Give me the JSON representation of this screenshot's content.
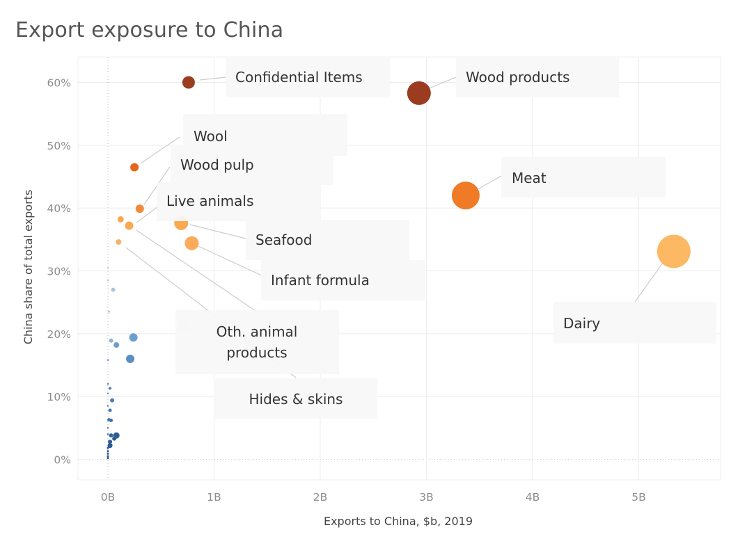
{
  "chart_data": {
    "type": "scatter",
    "title": "Export exposure to China",
    "xlabel": "Exports to China, $b, 2019",
    "ylabel": "China share of total exports",
    "xlim": [
      -0.3,
      5.75
    ],
    "ylim": [
      -3,
      64
    ],
    "x_ticks": [
      0,
      1,
      2,
      3,
      4,
      5
    ],
    "x_tick_labels": [
      "0B",
      "1B",
      "2B",
      "3B",
      "4B",
      "5B"
    ],
    "y_ticks": [
      0,
      10,
      20,
      30,
      40,
      50,
      60
    ],
    "y_tick_labels": [
      "0%",
      "10%",
      "20%",
      "30%",
      "40%",
      "50%",
      "60%"
    ],
    "grid": true,
    "legend": "none",
    "points": [
      {
        "x": 0.76,
        "y": 60.0,
        "size": 9,
        "color": "#9b3b1f"
      },
      {
        "x": 2.93,
        "y": 58.3,
        "size": 17,
        "color": "#9b3b1f"
      },
      {
        "x": 0.25,
        "y": 46.5,
        "size": 6,
        "color": "#e3661c"
      },
      {
        "x": 0.3,
        "y": 39.9,
        "size": 6,
        "color": "#f08a3c"
      },
      {
        "x": 3.37,
        "y": 42.0,
        "size": 20,
        "color": "#ef7b27"
      },
      {
        "x": 0.69,
        "y": 37.6,
        "size": 10,
        "color": "#fba853"
      },
      {
        "x": 0.12,
        "y": 38.2,
        "size": 4.5,
        "color": "#fba853"
      },
      {
        "x": 0.2,
        "y": 37.2,
        "size": 6,
        "color": "#fba853"
      },
      {
        "x": 0.79,
        "y": 34.4,
        "size": 10,
        "color": "#fbab5a"
      },
      {
        "x": 0.1,
        "y": 34.6,
        "size": 4,
        "color": "#fbb065"
      },
      {
        "x": 5.33,
        "y": 33.1,
        "size": 24,
        "color": "#fdb864"
      },
      {
        "x": 0.72,
        "y": 21.3,
        "size": 10,
        "color": "#e9eef3"
      },
      {
        "x": 0.05,
        "y": 27.0,
        "size": 3,
        "color": "#a8c6e0"
      },
      {
        "x": 0.24,
        "y": 19.4,
        "size": 6,
        "color": "#6c9fcf"
      },
      {
        "x": 0.21,
        "y": 16.0,
        "size": 6,
        "color": "#5b8fc3"
      },
      {
        "x": 0.08,
        "y": 18.2,
        "size": 4,
        "color": "#6b9ccb"
      },
      {
        "x": 0.03,
        "y": 18.9,
        "size": 3,
        "color": "#8cb3d8"
      },
      {
        "x": 0.01,
        "y": 23.5,
        "size": 1.5,
        "color": "#a8c6e0"
      },
      {
        "x": 0.0,
        "y": 28.5,
        "size": 1.5,
        "color": "#b8d0e6"
      },
      {
        "x": 0.0,
        "y": 30.5,
        "size": 1.2,
        "color": "#c4d8ea"
      },
      {
        "x": 0.0,
        "y": 15.8,
        "size": 1.5,
        "color": "#7fa9d2"
      },
      {
        "x": 0.04,
        "y": 9.4,
        "size": 3,
        "color": "#4a7cb5"
      },
      {
        "x": 0.02,
        "y": 11.3,
        "size": 2,
        "color": "#4a7cb5"
      },
      {
        "x": 0.02,
        "y": 7.8,
        "size": 2.5,
        "color": "#4679b3"
      },
      {
        "x": 0.01,
        "y": 6.3,
        "size": 2.5,
        "color": "#4679b3"
      },
      {
        "x": 0.03,
        "y": 6.2,
        "size": 2.5,
        "color": "#3f6fa8"
      },
      {
        "x": 0.08,
        "y": 3.8,
        "size": 4.5,
        "color": "#2e5d95"
      },
      {
        "x": 0.06,
        "y": 3.3,
        "size": 3,
        "color": "#2e5d95"
      },
      {
        "x": 0.03,
        "y": 3.8,
        "size": 3,
        "color": "#34649d"
      },
      {
        "x": 0.02,
        "y": 2.8,
        "size": 3,
        "color": "#2e5d95"
      },
      {
        "x": 0.02,
        "y": 2.2,
        "size": 3.5,
        "color": "#2a5890"
      },
      {
        "x": 0.0,
        "y": 12.0,
        "size": 1.2,
        "color": "#4f80b8"
      },
      {
        "x": 0.0,
        "y": 10.5,
        "size": 1.2,
        "color": "#4f80b8"
      },
      {
        "x": 0.0,
        "y": 8.5,
        "size": 1.2,
        "color": "#4f80b8"
      },
      {
        "x": 0.0,
        "y": 5.0,
        "size": 1.2,
        "color": "#3f6fa8"
      },
      {
        "x": 0.0,
        "y": 4.0,
        "size": 1.2,
        "color": "#3f6fa8"
      },
      {
        "x": 0.0,
        "y": 1.8,
        "size": 1.5,
        "color": "#2a5890"
      },
      {
        "x": 0.0,
        "y": 1.3,
        "size": 1.5,
        "color": "#2a5890"
      },
      {
        "x": 0.0,
        "y": 0.9,
        "size": 1.5,
        "color": "#2a5890"
      },
      {
        "x": 0.0,
        "y": 0.5,
        "size": 1.5,
        "color": "#2a5890"
      },
      {
        "x": 0.0,
        "y": 0.2,
        "size": 1.5,
        "color": "#2a5890"
      }
    ],
    "annotations": [
      {
        "lines": [
          "Confidential Items"
        ],
        "x": 0.76,
        "y": 60.0,
        "anchor": "start"
      },
      {
        "lines": [
          "Wood products"
        ],
        "x": 2.93,
        "y": 58.3,
        "anchor": "start"
      },
      {
        "lines": [
          "Wool"
        ],
        "x": 0.25,
        "y": 46.5,
        "anchor": "start"
      },
      {
        "lines": [
          "Wood pulp"
        ],
        "x": 0.3,
        "y": 39.9,
        "anchor": "start"
      },
      {
        "lines": [
          "Live animals"
        ],
        "x": 0.2,
        "y": 37.2,
        "anchor": "start"
      },
      {
        "lines": [
          "Seafood"
        ],
        "x": 0.69,
        "y": 37.6,
        "anchor": "start"
      },
      {
        "lines": [
          "Meat"
        ],
        "x": 3.37,
        "y": 42.0,
        "anchor": "start"
      },
      {
        "lines": [
          "Infant formula"
        ],
        "x": 0.79,
        "y": 34.4,
        "anchor": "start"
      },
      {
        "lines": [
          "Dairy"
        ],
        "x": 5.33,
        "y": 33.1,
        "anchor": "start"
      },
      {
        "lines": [
          "Oth. animal",
          "products"
        ],
        "x": 0.12,
        "y": 38.2,
        "anchor": "middle"
      },
      {
        "lines": [
          "Hides & skins"
        ],
        "x": 0.1,
        "y": 34.6,
        "anchor": "middle"
      }
    ]
  }
}
